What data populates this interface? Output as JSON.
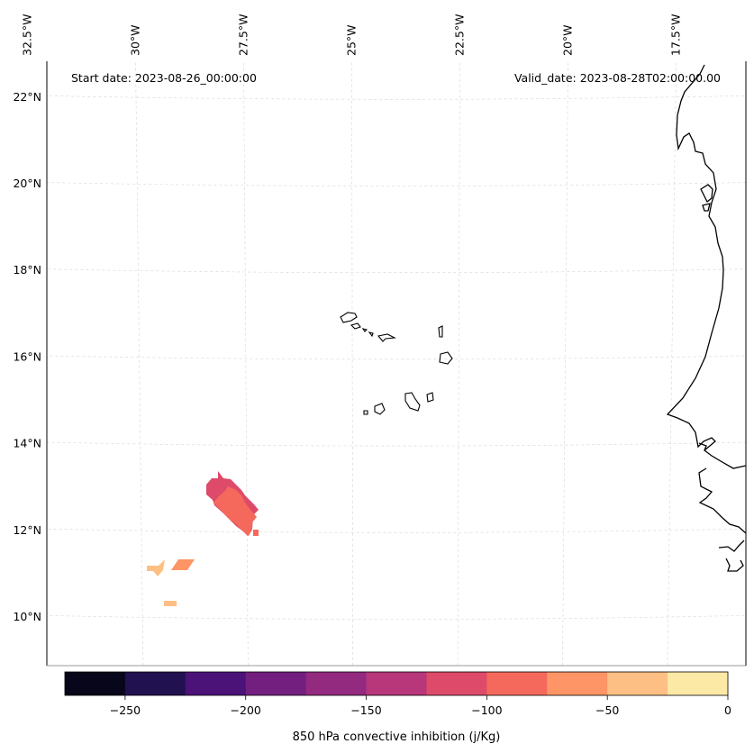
{
  "map": {
    "start_date_label": "Start date: 2023-08-26_00:00:00",
    "valid_date_label": "Valid_date: 2023-08-28T02:00:00.00",
    "longitude_labels": [
      {
        "label": "32.5°W",
        "lon": -32.5
      },
      {
        "label": "30°W",
        "lon": -30
      },
      {
        "label": "27.5°W",
        "lon": -27.5
      },
      {
        "label": "25°W",
        "lon": -25
      },
      {
        "label": "22.5°W",
        "lon": -22.5
      },
      {
        "label": "20°W",
        "lon": -20
      },
      {
        "label": "17.5°W",
        "lon": -17.5
      }
    ],
    "latitude_labels": [
      {
        "label": "22°N",
        "lat": 22
      },
      {
        "label": "20°N",
        "lat": 20
      },
      {
        "label": "18°N",
        "lat": 18
      },
      {
        "label": "16°N",
        "lat": 16
      },
      {
        "label": "14°N",
        "lat": 14
      },
      {
        "label": "12°N",
        "lat": 12
      },
      {
        "label": "10°N",
        "lat": 10
      }
    ],
    "features": {
      "coastline": "West African coastline (Mauritania, Senegal, Guinea-Bissau)",
      "islands": "Cape Verde islands"
    },
    "cin_patches": [
      {
        "value_range": [
          -125,
          -100
        ],
        "description": "large patch near 28.5°W 12.5°N"
      },
      {
        "value_range": [
          -100,
          -75
        ],
        "description": "inner patch near 28°W 12.3°N"
      },
      {
        "value_range": [
          -75,
          -50
        ],
        "description": "small patch near 29.5°W 11.2°N"
      },
      {
        "value_range": [
          -50,
          -25
        ],
        "description": "small patches near 30.5°W 11°N"
      }
    ]
  },
  "colorbar": {
    "label": "850 hPa convective inhibition (j/Kg)",
    "bounds": [
      -275,
      -250,
      -225,
      -200,
      -175,
      -150,
      -125,
      -100,
      -75,
      -50,
      -25,
      0
    ],
    "colors": [
      "#07061a",
      "#221150",
      "#4b1278",
      "#731f80",
      "#932a80",
      "#b8367a",
      "#dd4a6a",
      "#f5695c",
      "#fd9567",
      "#febf84",
      "#fde9a6"
    ],
    "ticks": [
      {
        "label": "−250",
        "value": -250
      },
      {
        "label": "−200",
        "value": -200
      },
      {
        "label": "−150",
        "value": -150
      },
      {
        "label": "−100",
        "value": -100
      },
      {
        "label": "−50",
        "value": -50
      },
      {
        "label": "0",
        "value": 0
      }
    ]
  }
}
